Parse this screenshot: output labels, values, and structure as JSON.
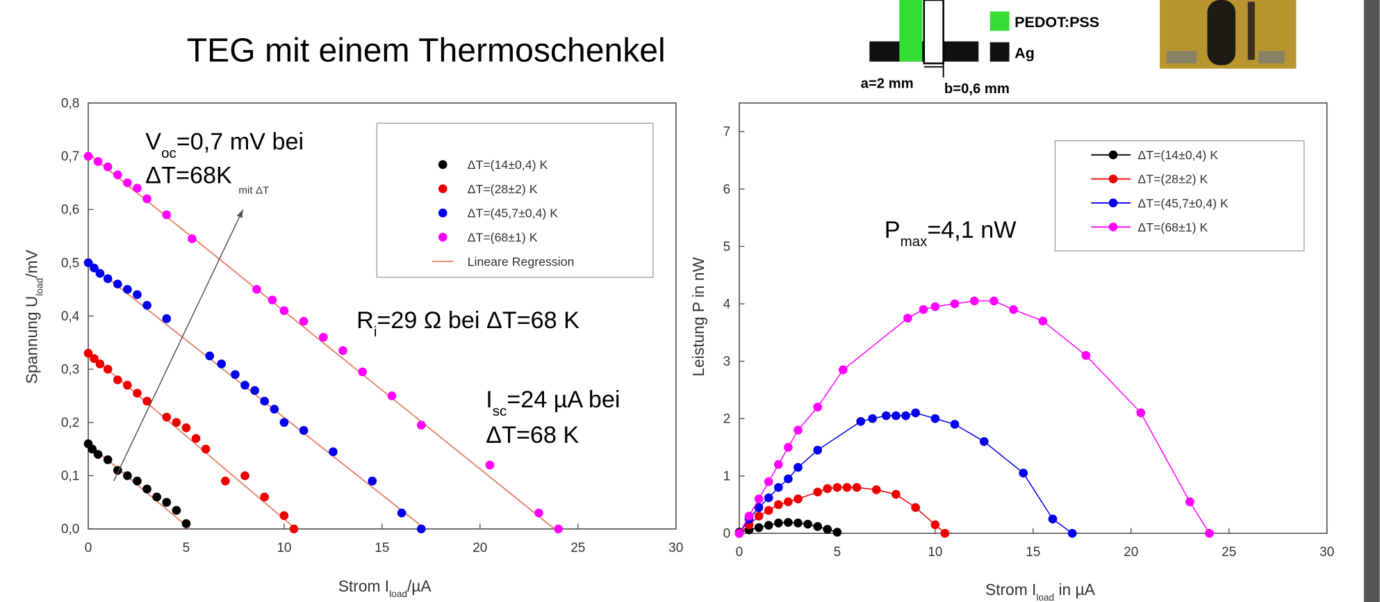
{
  "title": "TEG mit einem Thermoschenkel",
  "diagram": {
    "legend": [
      {
        "label": "PEDOT:PSS",
        "color": "#33dd33"
      },
      {
        "label": "Ag",
        "color": "#111111"
      }
    ],
    "a_label": "a=2 mm",
    "b_label": "b=0,6 mm"
  },
  "chart_data": [
    {
      "type": "scatter",
      "xlabel": [
        {
          "text": "Strom I"
        },
        {
          "text": "load",
          "sub": true
        },
        {
          "text": "/µA"
        }
      ],
      "ylabel": [
        {
          "text": "Spannung U"
        },
        {
          "text": "load",
          "sub": true
        },
        {
          "text": "/mV"
        }
      ],
      "xlim": [
        0,
        30
      ],
      "ylim": [
        0,
        0.8
      ],
      "xticks": [
        0,
        5,
        10,
        15,
        20,
        25,
        30
      ],
      "yticks": [
        {
          "value": 0,
          "label": "0,0"
        },
        {
          "value": 0.1,
          "label": "0,1"
        },
        {
          "value": 0.2,
          "label": "0,2"
        },
        {
          "value": 0.3,
          "label": "0,3"
        },
        {
          "value": 0.4,
          "label": "0,4"
        },
        {
          "value": 0.5,
          "label": "0,5"
        },
        {
          "value": 0.6,
          "label": "0,6"
        },
        {
          "value": 0.7,
          "label": "0,7"
        },
        {
          "value": 0.8,
          "label": "0,8"
        }
      ],
      "legend": "upper right",
      "series": [
        {
          "name": "ΔT=(14±0,4) K",
          "color": "#000000",
          "x": [
            0,
            0.2,
            0.5,
            1,
            1.5,
            2,
            2.5,
            3,
            3.5,
            4,
            4.5,
            5
          ],
          "y": [
            0.16,
            0.15,
            0.14,
            0.13,
            0.11,
            0.1,
            0.09,
            0.075,
            0.06,
            0.05,
            0.035,
            0.01
          ]
        },
        {
          "name": "ΔT=(28±2) K",
          "color": "#ee0000",
          "x": [
            0,
            0.3,
            0.6,
            1,
            1.5,
            2,
            2.5,
            3,
            4,
            4.5,
            5,
            5.5,
            6,
            7,
            8,
            9,
            10,
            10.5
          ],
          "y": [
            0.33,
            0.32,
            0.31,
            0.3,
            0.28,
            0.27,
            0.255,
            0.24,
            0.21,
            0.2,
            0.19,
            0.17,
            0.15,
            0.09,
            0.1,
            0.06,
            0.025,
            0
          ]
        },
        {
          "name": "ΔT=(45,7±0,4) K",
          "color": "#0000ee",
          "x": [
            0,
            0.3,
            0.6,
            1,
            1.5,
            2,
            2.5,
            3,
            4,
            6.2,
            6.8,
            7.5,
            8,
            8.5,
            9,
            9.5,
            10,
            11,
            12.5,
            14.5,
            16,
            17
          ],
          "y": [
            0.5,
            0.49,
            0.48,
            0.47,
            0.46,
            0.45,
            0.44,
            0.42,
            0.395,
            0.325,
            0.31,
            0.29,
            0.27,
            0.26,
            0.24,
            0.225,
            0.2,
            0.185,
            0.145,
            0.09,
            0.03,
            0
          ]
        },
        {
          "name": "ΔT=(68±1) K",
          "color": "#ff00ff",
          "x": [
            0,
            0.5,
            1,
            1.5,
            2,
            2.5,
            3,
            4,
            5.3,
            8.6,
            9.4,
            10,
            11,
            12,
            13,
            14,
            15.5,
            17,
            20.5,
            23,
            24
          ],
          "y": [
            0.7,
            0.69,
            0.68,
            0.665,
            0.65,
            0.64,
            0.62,
            0.59,
            0.545,
            0.45,
            0.43,
            0.41,
            0.39,
            0.36,
            0.335,
            0.295,
            0.25,
            0.195,
            0.12,
            0.03,
            0
          ]
        }
      ],
      "regression": {
        "name": "Lineare Regression",
        "color": "#e8826a",
        "lines": [
          {
            "x": [
              0,
              5.2
            ],
            "y": [
              0.16,
              0
            ]
          },
          {
            "x": [
              0,
              10.6
            ],
            "y": [
              0.33,
              0
            ]
          },
          {
            "x": [
              0,
              17.2
            ],
            "y": [
              0.5,
              0
            ]
          },
          {
            "x": [
              0,
              23.8
            ],
            "y": [
              0.705,
              0
            ]
          }
        ]
      },
      "arrow_label": "mit ΔT",
      "annotations": [
        [
          {
            "text": "V"
          },
          {
            "text": "oc",
            "sub": true
          },
          {
            "text": "=0,7 mV bei"
          }
        ],
        [
          {
            "text": "ΔT=68K"
          }
        ],
        [
          {
            "text": "R"
          },
          {
            "text": "i",
            "sub": true
          },
          {
            "text": "=29 Ω bei ΔT=68 K"
          }
        ],
        [
          {
            "text": "I"
          },
          {
            "text": "sc",
            "sub": true
          },
          {
            "text": "=24 µA bei"
          }
        ],
        [
          {
            "text": "ΔT=68 K"
          }
        ]
      ]
    },
    {
      "type": "line",
      "xlabel": [
        {
          "text": "Strom I"
        },
        {
          "text": "load",
          "sub": true
        },
        {
          "text": " in µA"
        }
      ],
      "ylabel": [
        {
          "text": "Leistung P in nW"
        }
      ],
      "xlim": [
        0,
        30
      ],
      "ylim": [
        0,
        7.5
      ],
      "xticks": [
        0,
        5,
        10,
        15,
        20,
        25,
        30
      ],
      "yticks": [
        0,
        1,
        2,
        3,
        4,
        5,
        6,
        7
      ],
      "legend": "upper right",
      "series": [
        {
          "name": "ΔT=(14±0,4) K",
          "color": "#000000",
          "x": [
            0,
            0.5,
            1,
            1.5,
            2,
            2.5,
            3,
            3.5,
            4,
            4.5,
            5
          ],
          "y": [
            0.02,
            0.06,
            0.1,
            0.14,
            0.18,
            0.19,
            0.18,
            0.16,
            0.12,
            0.07,
            0.02
          ]
        },
        {
          "name": "ΔT=(28±2) K",
          "color": "#ee0000",
          "x": [
            0,
            0.5,
            1,
            1.5,
            2,
            2.5,
            3,
            4,
            4.5,
            5,
            5.5,
            6,
            7,
            8,
            9,
            10,
            10.5
          ],
          "y": [
            0,
            0.15,
            0.3,
            0.4,
            0.5,
            0.55,
            0.6,
            0.72,
            0.78,
            0.8,
            0.8,
            0.8,
            0.76,
            0.68,
            0.45,
            0.15,
            0
          ]
        },
        {
          "name": "ΔT=(45,7±0,4) K",
          "color": "#0000ee",
          "x": [
            0,
            0.5,
            1,
            1.5,
            2,
            2.5,
            3,
            4,
            6.2,
            6.8,
            7.5,
            8,
            8.5,
            9,
            10,
            11,
            12.5,
            14.5,
            16,
            17
          ],
          "y": [
            0,
            0.25,
            0.45,
            0.62,
            0.8,
            0.95,
            1.15,
            1.45,
            1.95,
            2,
            2.05,
            2.05,
            2.05,
            2.1,
            2,
            1.9,
            1.6,
            1.05,
            0.25,
            0
          ]
        },
        {
          "name": "ΔT=(68±1) K",
          "color": "#ff00ff",
          "x": [
            0,
            0.5,
            1,
            1.5,
            2,
            2.5,
            3,
            4,
            5.3,
            8.6,
            9.4,
            10,
            11,
            12,
            13,
            14,
            15.5,
            17.7,
            20.5,
            23,
            24
          ],
          "y": [
            0,
            0.3,
            0.6,
            0.9,
            1.2,
            1.5,
            1.8,
            2.2,
            2.85,
            3.75,
            3.9,
            3.95,
            4,
            4.05,
            4.05,
            3.9,
            3.7,
            3.1,
            2.1,
            0.55,
            0
          ]
        }
      ],
      "annotations": [
        [
          {
            "text": "P"
          },
          {
            "text": "max",
            "sub": true
          },
          {
            "text": "=4,1 nW"
          }
        ]
      ]
    }
  ]
}
